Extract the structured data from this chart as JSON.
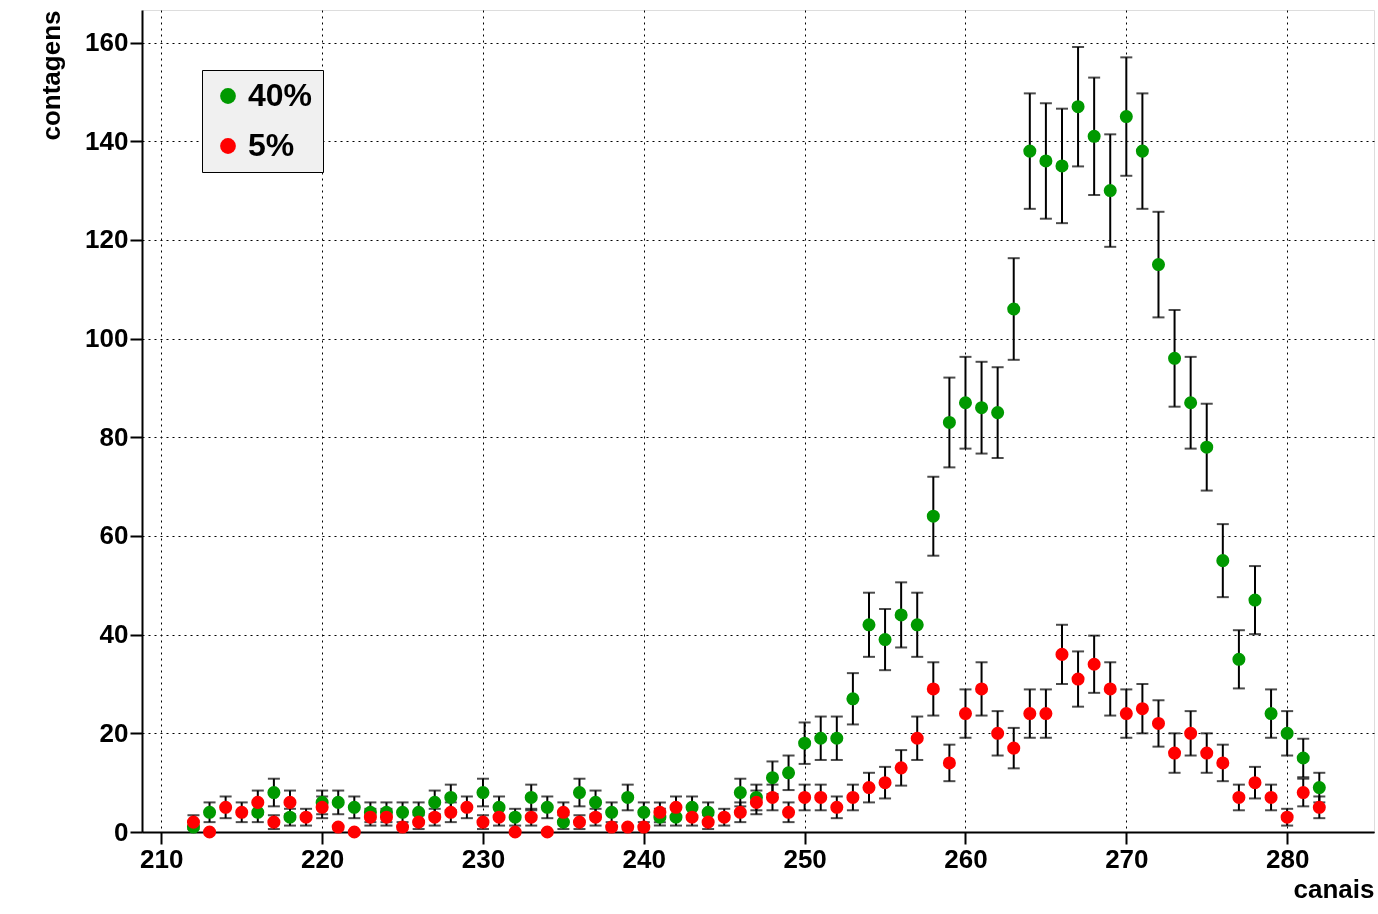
{
  "chart_data": {
    "type": "scatter",
    "xlabel": "canais",
    "ylabel": "contagens",
    "x": [
      212,
      213,
      214,
      215,
      216,
      217,
      218,
      219,
      220,
      221,
      222,
      223,
      224,
      225,
      226,
      227,
      228,
      229,
      230,
      231,
      232,
      233,
      234,
      235,
      236,
      237,
      238,
      239,
      240,
      241,
      242,
      243,
      244,
      245,
      246,
      247,
      248,
      249,
      250,
      251,
      252,
      253,
      254,
      255,
      256,
      257,
      258,
      259,
      260,
      261,
      262,
      263,
      264,
      265,
      266,
      267,
      268,
      269,
      270,
      271,
      272,
      273,
      274,
      275,
      276,
      277,
      278,
      279,
      280,
      281,
      282
    ],
    "series": [
      {
        "name": "40%",
        "color": "#009900",
        "values": [
          1,
          4,
          null,
          null,
          4,
          8,
          3,
          null,
          6,
          6,
          5,
          4,
          4,
          4,
          4,
          6,
          7,
          null,
          8,
          5,
          3,
          7,
          5,
          2,
          8,
          6,
          4,
          7,
          4,
          3,
          3,
          5,
          4,
          null,
          8,
          7,
          11,
          12,
          18,
          19,
          19,
          27,
          42,
          39,
          44,
          42,
          64,
          83,
          87,
          86,
          85,
          106,
          138,
          136,
          135,
          147,
          141,
          130,
          145,
          138,
          115,
          96,
          87,
          78,
          55,
          35,
          47,
          24,
          20,
          15,
          9
        ],
        "errors": [
          null,
          2,
          null,
          null,
          2,
          2.8,
          1.7,
          null,
          2.4,
          2.4,
          2.2,
          2,
          2,
          2,
          2,
          2.4,
          2.6,
          null,
          2.8,
          2.2,
          1.7,
          2.6,
          2.2,
          1.4,
          2.8,
          2.4,
          2,
          2.6,
          2,
          1.7,
          1.7,
          2.2,
          2,
          null,
          2.8,
          2.6,
          3.3,
          3.5,
          4.2,
          4.4,
          4.4,
          5.2,
          6.5,
          6.2,
          6.6,
          6.5,
          8,
          9.1,
          9.3,
          9.3,
          9.2,
          10.3,
          11.7,
          11.7,
          11.6,
          12.1,
          11.9,
          11.4,
          12,
          11.7,
          10.7,
          9.8,
          9.3,
          8.8,
          7.4,
          5.9,
          6.9,
          4.9,
          4.5,
          3.9,
          3
        ]
      },
      {
        "name": "5%",
        "color": "#ff0000",
        "values": [
          2,
          0,
          5,
          4,
          6,
          2,
          6,
          3,
          5,
          1,
          0,
          3,
          3,
          1,
          2,
          3,
          4,
          5,
          2,
          3,
          0,
          3,
          0,
          4,
          2,
          3,
          1,
          1,
          1,
          4,
          5,
          3,
          2,
          3,
          4,
          6,
          7,
          4,
          7,
          7,
          5,
          7,
          9,
          10,
          13,
          19,
          29,
          14,
          24,
          29,
          20,
          17,
          24,
          24,
          36,
          31,
          34,
          29,
          24,
          25,
          22,
          16,
          20,
          16,
          14,
          7,
          10,
          7,
          3,
          8,
          5
        ],
        "errors": [
          1.4,
          null,
          2.2,
          2,
          2.4,
          1.4,
          2.4,
          1.7,
          2.2,
          null,
          null,
          1.7,
          1.7,
          null,
          1.4,
          1.7,
          2,
          2.2,
          1.4,
          1.7,
          null,
          1.7,
          null,
          2,
          1.4,
          1.7,
          null,
          null,
          null,
          2,
          2.2,
          1.7,
          1.4,
          1.7,
          2,
          2.4,
          2.6,
          2,
          2.6,
          2.6,
          2.2,
          2.6,
          3,
          3.2,
          3.6,
          4.4,
          5.4,
          3.7,
          4.9,
          5.4,
          4.5,
          4.1,
          4.9,
          4.9,
          6,
          5.6,
          5.8,
          5.4,
          4.9,
          5,
          4.7,
          4,
          4.5,
          4,
          3.7,
          2.6,
          3.2,
          2.6,
          1.7,
          2.8,
          2.2
        ]
      }
    ],
    "xlim": [
      208.8,
      285.4
    ],
    "xticks": [
      210,
      220,
      230,
      240,
      250,
      260,
      270,
      280
    ],
    "ylim": [
      0,
      166.6
    ],
    "yticks": [
      0,
      20,
      40,
      60,
      80,
      100,
      120,
      140,
      160
    ],
    "grid": true,
    "legend": "top left",
    "marker": "circle"
  }
}
